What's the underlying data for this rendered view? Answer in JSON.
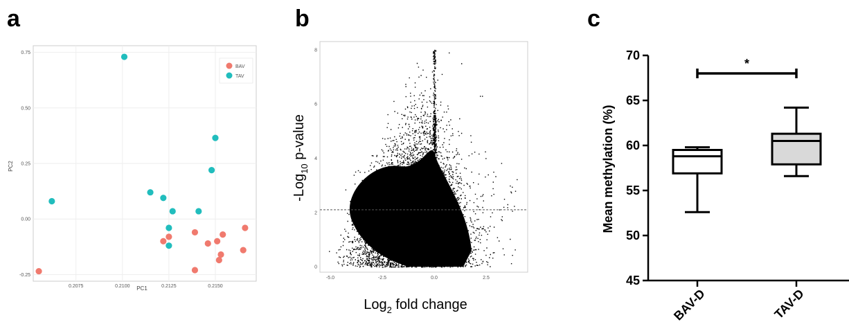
{
  "panels": {
    "a": "a",
    "b": "b",
    "c": "c"
  },
  "chart_data": [
    {
      "type": "scatter",
      "panel": "a",
      "xlabel": "PC1",
      "ylabel": "PC2",
      "xlim": [
        0.2052,
        0.2172
      ],
      "ylim": [
        -0.28,
        0.78
      ],
      "xticks": [
        0.2075,
        0.21,
        0.2125,
        0.215
      ],
      "xtick_labels": [
        "0.2075",
        "0.2100",
        "0.2125",
        "0.2150"
      ],
      "yticks": [
        -0.25,
        0.0,
        0.25,
        0.5,
        0.75
      ],
      "ytick_labels": [
        "-0.25",
        "0.00",
        "0.25",
        "0.50",
        "0.75"
      ],
      "legend": {
        "position": "top-right",
        "entries": [
          {
            "label": "BAV",
            "color": "#f07a6e"
          },
          {
            "label": "TAV",
            "color": "#21bdbd"
          }
        ]
      },
      "series": [
        {
          "name": "BAV",
          "color": "#f07a6e",
          "points": [
            [
              0.2055,
              -0.235
            ],
            [
              0.2122,
              -0.1
            ],
            [
              0.2125,
              -0.08
            ],
            [
              0.2139,
              -0.06
            ],
            [
              0.2146,
              -0.11
            ],
            [
              0.2151,
              -0.1
            ],
            [
              0.2154,
              -0.07
            ],
            [
              0.2153,
              -0.16
            ],
            [
              0.2152,
              -0.185
            ],
            [
              0.2139,
              -0.23
            ],
            [
              0.2166,
              -0.04
            ],
            [
              0.2165,
              -0.14
            ]
          ]
        },
        {
          "name": "TAV",
          "color": "#21bdbd",
          "points": [
            [
              0.2101,
              0.73
            ],
            [
              0.2062,
              0.08
            ],
            [
              0.2115,
              0.12
            ],
            [
              0.2122,
              0.095
            ],
            [
              0.2127,
              0.035
            ],
            [
              0.2125,
              -0.04
            ],
            [
              0.2125,
              -0.12
            ],
            [
              0.2141,
              0.035
            ],
            [
              0.2148,
              0.22
            ],
            [
              0.215,
              0.365
            ]
          ]
        }
      ]
    },
    {
      "type": "scatter",
      "panel": "b",
      "title": "",
      "xlabel_main": "Log",
      "xlabel_sub": "2",
      "xlabel_rest": " fold change",
      "ylabel_pre": "-Log",
      "ylabel_sub": "10",
      "ylabel_rest": " p-value",
      "xlim": [
        -5.5,
        4.5
      ],
      "ylim": [
        -0.2,
        8.3
      ],
      "xticks": [
        -5.0,
        -2.5,
        0.0,
        2.5
      ],
      "xtick_labels": [
        "-5.0",
        "-2.5",
        "0.0",
        "2.5"
      ],
      "yticks": [
        0,
        2,
        4,
        6,
        8
      ],
      "ytick_labels": [
        "0",
        "2",
        "4",
        "6",
        "8"
      ],
      "threshold_y": 2.1,
      "note": "dense volcano cloud of tens of thousands of CpG sites centred near x=-1, spreading to about x=-4.5..3.5; sparse outliers up to y≈8"
    },
    {
      "type": "box",
      "panel": "c",
      "ylabel": "Mean methylation (%)",
      "ylim": [
        45,
        70
      ],
      "yticks": [
        45,
        50,
        55,
        60,
        65,
        70
      ],
      "ytick_labels": [
        "45",
        "50",
        "55",
        "60",
        "65",
        "70"
      ],
      "categories": [
        "BAV-D",
        "TAV-D"
      ],
      "boxes": [
        {
          "name": "BAV-D",
          "min": 52.6,
          "q1": 56.9,
          "median": 58.8,
          "q3": 59.5,
          "max": 59.8,
          "fill": "#ffffff"
        },
        {
          "name": "TAV-D",
          "min": 56.6,
          "q1": 57.9,
          "median": 60.5,
          "q3": 61.3,
          "max": 64.2,
          "fill": "#d9d9d9"
        }
      ],
      "significance": {
        "label": "*",
        "y": 68.0
      }
    }
  ]
}
